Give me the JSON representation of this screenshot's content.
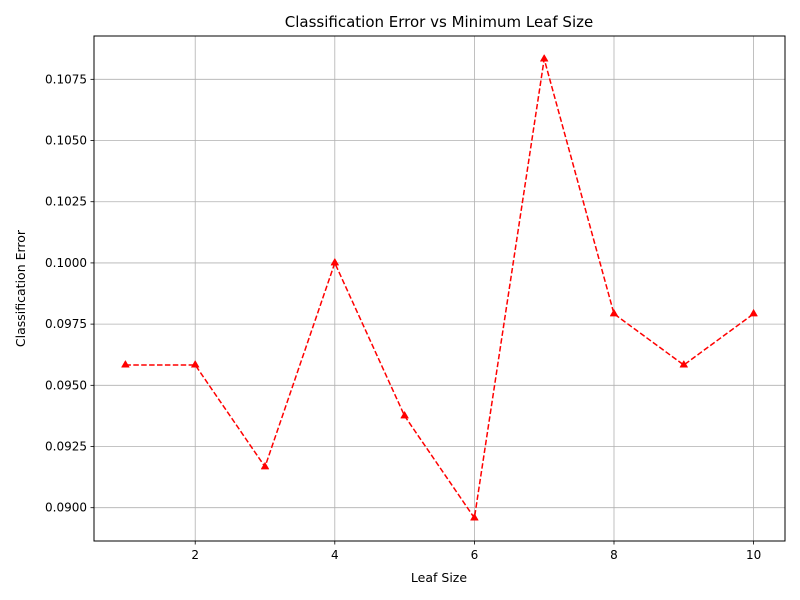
{
  "chart_data": {
    "type": "line",
    "title": "Classification Error vs Minimum Leaf Size",
    "xlabel": "Leaf Size",
    "ylabel": "Classification Error",
    "x": [
      1,
      2,
      3,
      4,
      5,
      6,
      7,
      8,
      9,
      10
    ],
    "series": [
      {
        "values": [
          0.09583,
          0.09583,
          0.09167,
          0.1,
          0.09375,
          0.08958,
          0.10833,
          0.09792,
          0.09583,
          0.09792
        ],
        "color": "#ff0000",
        "line_style": "dashed",
        "marker": "triangle-up"
      }
    ],
    "xlim": [
      0.55,
      10.45
    ],
    "ylim": [
      0.08864,
      0.10927
    ],
    "xticks": [
      2,
      4,
      6,
      8,
      10
    ],
    "xtick_labels": [
      "2",
      "4",
      "6",
      "8",
      "10"
    ],
    "yticks": [
      0.09,
      0.0925,
      0.095,
      0.0975,
      0.1,
      0.1025,
      0.105,
      0.1075
    ],
    "ytick_labels": [
      "0.0900",
      "0.0925",
      "0.0950",
      "0.0975",
      "0.1000",
      "0.1025",
      "0.1050",
      "0.1075"
    ],
    "grid": true,
    "legend": "none",
    "colors": {
      "grid": "#b0b0b0",
      "axes": "#000000",
      "line": "#ff0000"
    }
  }
}
